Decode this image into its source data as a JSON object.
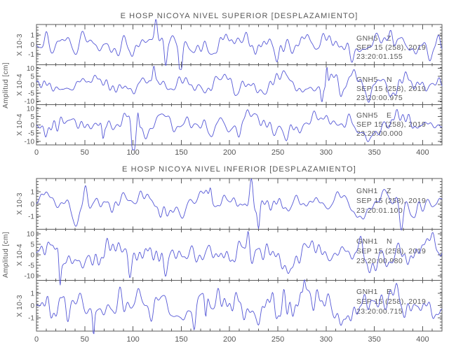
{
  "colors": {
    "background": "#ffffff",
    "waveform": "#5457d6",
    "axis": "#5a5a5a",
    "text": "#575757"
  },
  "ylabel": "Amplitud [cm]",
  "chart_data": {
    "type": "line",
    "description": "Two stacked seismogram panels (displacement), three components each, band-limited noise traces",
    "x_range": [
      0,
      420
    ],
    "x_ticks": [
      0,
      50,
      100,
      150,
      200,
      250,
      300,
      350,
      400
    ],
    "x_minor_step": 10,
    "ylabel": "Amplitud [cm]",
    "grid": false,
    "panels": [
      {
        "title": "E HOSP NICOYA NIVEL SUPERIOR [DESPLAZAMIENTO]",
        "traces": [
          {
            "station": "GNH5",
            "component": "Z",
            "date": "SEP 15 (258), 2019",
            "time": "23:20:01.155",
            "scale": "X 10-3",
            "yticks": [
              "1",
              "0",
              "-1"
            ],
            "y_range": [
              -1.5,
              1.5
            ],
            "seed": 11
          },
          {
            "station": "GNH5",
            "component": "N",
            "date": "SEP 15 (258), 2019",
            "time": "23:20:00.975",
            "scale": "X 10-4",
            "yticks": [
              "10",
              "5",
              "0",
              "-5",
              "-10"
            ],
            "y_range": [
              -13,
              13
            ],
            "seed": 27
          },
          {
            "station": "GNH5",
            "component": "E",
            "date": "SEP 15 (258), 2019",
            "time": "23:20:00.000",
            "scale": "X 10-4",
            "yticks": [
              "10",
              "5",
              "0",
              "-5",
              "-10"
            ],
            "y_range": [
              -13,
              13
            ],
            "seed": 42
          }
        ]
      },
      {
        "title": "E HOSP NICOYA NIVEL INFERIOR [DESPLAZAMIENTO]",
        "traces": [
          {
            "station": "GNH1",
            "component": "Z",
            "date": "SEP 15 (258), 2019",
            "time": "23:20:01.100",
            "scale": "X 10-3",
            "yticks": [
              "1",
              "0",
              "-1"
            ],
            "y_range": [
              -1.5,
              1.5
            ],
            "seed": 55
          },
          {
            "station": "GNH1",
            "component": "N",
            "date": "SEP 15 (258), 2019",
            "time": "23:20:00.980",
            "scale": "X 10-4",
            "yticks": [
              "10",
              "5",
              "0",
              "-5",
              "-10"
            ],
            "y_range": [
              -13,
              13
            ],
            "seed": 63
          },
          {
            "station": "GNH1",
            "component": "E",
            "date": "SEP 15 (258), 2019",
            "time": "23:20:00.715",
            "scale": "X 10-3",
            "yticks": [
              "1",
              "0",
              "-1"
            ],
            "y_range": [
              -1.7,
              1.4
            ],
            "seed": 78
          }
        ]
      }
    ]
  }
}
